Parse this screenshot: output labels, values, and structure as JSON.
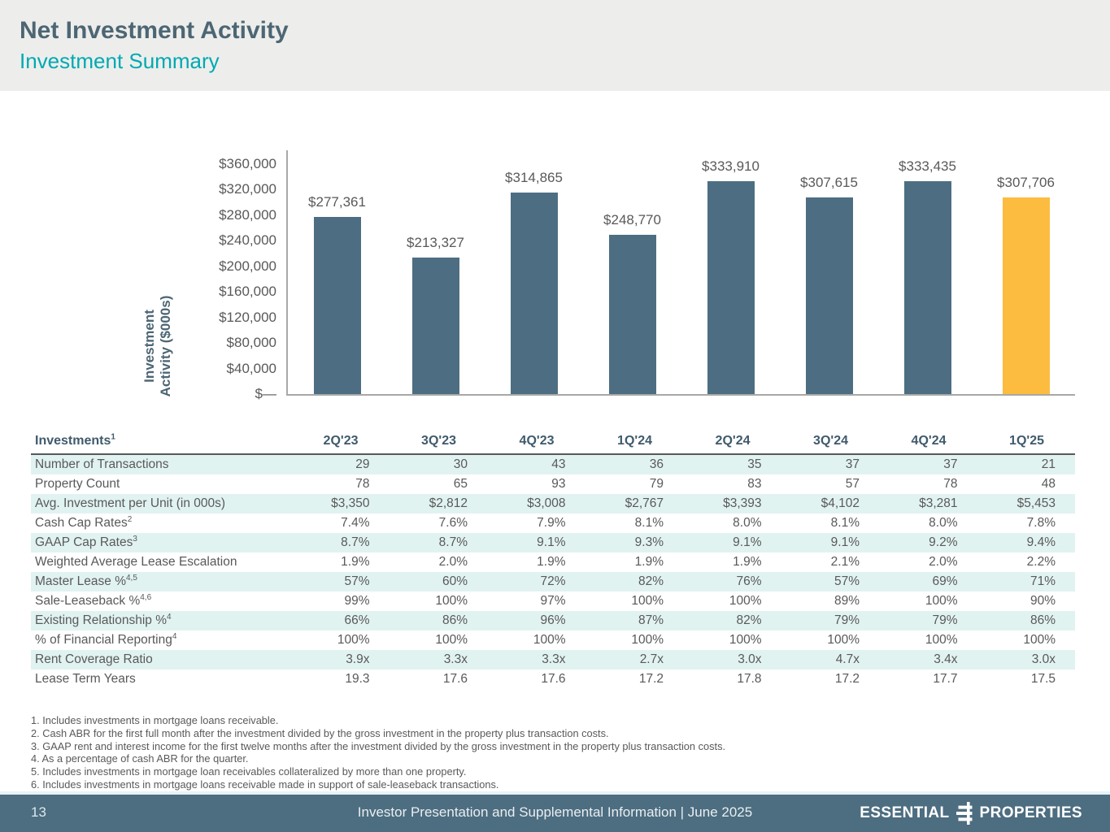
{
  "page": {
    "title": "Net Investment Activity",
    "subtitle": "Investment Summary"
  },
  "chart_data": {
    "type": "bar",
    "title": "",
    "ylabel": "Investment Activity ($000s)",
    "ylabel_line1": "Investment",
    "ylabel_line2": "Activity ($000s)",
    "categories": [
      "2Q'23",
      "3Q'23",
      "4Q'23",
      "1Q'24",
      "2Q'24",
      "3Q'24",
      "4Q'24",
      "1Q'25"
    ],
    "values": [
      277361,
      213327,
      314865,
      248770,
      333910,
      307615,
      333435,
      307706
    ],
    "value_labels": [
      "$277,361",
      "$213,327",
      "$314,865",
      "$248,770",
      "$333,910",
      "$307,615",
      "$333,435",
      "$307,706"
    ],
    "ylim": [
      0,
      360000
    ],
    "grid": false,
    "highlight_index": 7,
    "colors": {
      "bar": "#4d6e82",
      "highlight": "#fcbc40"
    },
    "ticks": [
      {
        "label": "$360,000",
        "value": 360000
      },
      {
        "label": "$320,000",
        "value": 320000
      },
      {
        "label": "$280,000",
        "value": 280000
      },
      {
        "label": "$240,000",
        "value": 240000
      },
      {
        "label": "$200,000",
        "value": 200000
      },
      {
        "label": "$160,000",
        "value": 160000
      },
      {
        "label": "$120,000",
        "value": 120000
      },
      {
        "label": "$80,000",
        "value": 80000
      },
      {
        "label": "$40,000",
        "value": 40000
      },
      {
        "label": "$—",
        "value": 0
      }
    ]
  },
  "table": {
    "title": "Investments",
    "title_sup": "1",
    "columns": [
      "2Q'23",
      "3Q'23",
      "4Q'23",
      "1Q'24",
      "2Q'24",
      "3Q'24",
      "4Q'24",
      "1Q'25"
    ],
    "rows": [
      {
        "label": "Number of Transactions",
        "sup": "",
        "values": [
          "29",
          "30",
          "43",
          "36",
          "35",
          "37",
          "37",
          "21"
        ]
      },
      {
        "label": "Property Count",
        "sup": "",
        "values": [
          "78",
          "65",
          "93",
          "79",
          "83",
          "57",
          "78",
          "48"
        ]
      },
      {
        "label": "Avg. Investment per Unit (in 000s)",
        "sup": "",
        "values": [
          "$3,350",
          "$2,812",
          "$3,008",
          "$2,767",
          "$3,393",
          "$4,102",
          "$3,281",
          "$5,453"
        ]
      },
      {
        "label": "Cash Cap Rates",
        "sup": "2",
        "values": [
          "7.4%",
          "7.6%",
          "7.9%",
          "8.1%",
          "8.0%",
          "8.1%",
          "8.0%",
          "7.8%"
        ]
      },
      {
        "label": "GAAP Cap Rates",
        "sup": "3",
        "values": [
          "8.7%",
          "8.7%",
          "9.1%",
          "9.3%",
          "9.1%",
          "9.1%",
          "9.2%",
          "9.4%"
        ]
      },
      {
        "label": "Weighted Average Lease Escalation",
        "sup": "",
        "values": [
          "1.9%",
          "2.0%",
          "1.9%",
          "1.9%",
          "1.9%",
          "2.1%",
          "2.0%",
          "2.2%"
        ]
      },
      {
        "label": "Master Lease %",
        "sup": "4,5",
        "values": [
          "57%",
          "60%",
          "72%",
          "82%",
          "76%",
          "57%",
          "69%",
          "71%"
        ]
      },
      {
        "label": "Sale-Leaseback %",
        "sup": "4,6",
        "values": [
          "99%",
          "100%",
          "97%",
          "100%",
          "100%",
          "89%",
          "100%",
          "90%"
        ]
      },
      {
        "label": "Existing Relationship %",
        "sup": "4",
        "values": [
          "66%",
          "86%",
          "96%",
          "87%",
          "82%",
          "79%",
          "79%",
          "86%"
        ]
      },
      {
        "label": "% of Financial Reporting",
        "sup": "4",
        "values": [
          "100%",
          "100%",
          "100%",
          "100%",
          "100%",
          "100%",
          "100%",
          "100%"
        ]
      },
      {
        "label": "Rent Coverage Ratio",
        "sup": "",
        "values": [
          "3.9x",
          "3.3x",
          "3.3x",
          "2.7x",
          "3.0x",
          "4.7x",
          "3.4x",
          "3.0x"
        ]
      },
      {
        "label": "Lease Term Years",
        "sup": "",
        "values": [
          "19.3",
          "17.6",
          "17.6",
          "17.2",
          "17.8",
          "17.2",
          "17.7",
          "17.5"
        ]
      }
    ]
  },
  "footnotes": [
    "1. Includes investments in mortgage loans receivable.",
    "2. Cash ABR for the first full month after the investment divided by the gross investment in the property plus transaction costs.",
    "3. GAAP rent and interest income for the first twelve months after the investment divided by the gross investment in the property plus transaction costs.",
    "4. As a percentage of cash ABR for the quarter.",
    "5. Includes investments in mortgage loan receivables collateralized by more than one property.",
    "6. Includes investments in mortgage loans receivable made in support of sale-leaseback transactions."
  ],
  "footer": {
    "page_number": "13",
    "center_text": "Investor Presentation and Supplemental Information | June 2025",
    "logo_word_left": "ESSENTIAL",
    "logo_word_right": "PROPERTIES"
  },
  "colors": {
    "header_band": "#edeeec",
    "title": "#4d6673",
    "subtitle": "#00a9b2",
    "bar": "#4d6e82",
    "bar_highlight": "#fcbc40",
    "body_text": "#595959",
    "table_stripe": "#e1f3f1",
    "table_header_text": "#3f5a6b",
    "footer_bg": "#4d6d80"
  }
}
